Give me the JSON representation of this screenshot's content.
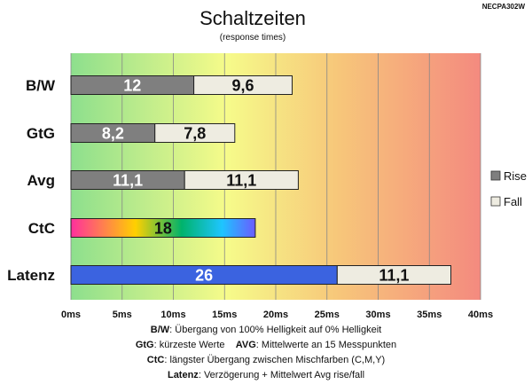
{
  "model": "NECPA302W",
  "title": "Schaltzeiten",
  "subtitle": "(response times)",
  "chart_data": {
    "type": "bar",
    "orientation": "horizontal",
    "stacked": true,
    "title": "Schaltzeiten",
    "subtitle": "(response times)",
    "categories": [
      "B/W",
      "GtG",
      "Avg",
      "CtC",
      "Latenz"
    ],
    "series": [
      {
        "name": "Rise",
        "values": [
          12,
          8.2,
          11.1,
          18,
          26
        ],
        "labels": [
          "12",
          "8,2",
          "11,1",
          "18",
          "26"
        ]
      },
      {
        "name": "Fall",
        "values": [
          9.6,
          7.8,
          11.1,
          null,
          11.1
        ],
        "labels": [
          "9,6",
          "7,8",
          "11,1",
          "",
          "11,1"
        ]
      }
    ],
    "xlim": [
      0,
      40
    ],
    "xticks": [
      "0ms",
      "5ms",
      "10ms",
      "15ms",
      "20ms",
      "25ms",
      "30ms",
      "35ms",
      "40ms"
    ],
    "grid": true,
    "legend": "right",
    "colors": {
      "rise": "#7f7f7f",
      "fall": "#eeece1",
      "latency": "#3b63e0",
      "background_gradient": [
        "#8ddf8d",
        "#f6fb8a",
        "#f7c77a",
        "#f48a7f"
      ],
      "ctc_gradient": [
        "#ff2f9e",
        "#ffd000",
        "#00b36b",
        "#1ec5ff",
        "#6a5cff"
      ]
    }
  },
  "notes": [
    {
      "key": "B/W",
      "sep": ": ",
      "text": "Übergang von 100% Helligkeit auf 0% Helligkeit"
    },
    {
      "key": "GtG",
      "sep": ": ",
      "text": "kürzeste  Werte",
      "key2": "AVG",
      "text2": "Mittelwerte an 15 Messpunkten"
    },
    {
      "key": "CtC",
      "sep": ": ",
      "text": "längster Übergang zwischen Mischfarben (C,M,Y)"
    },
    {
      "key": "Latenz",
      "sep": ": ",
      "text": "Verzögerung  + Mittelwert Avg rise/fall"
    }
  ]
}
